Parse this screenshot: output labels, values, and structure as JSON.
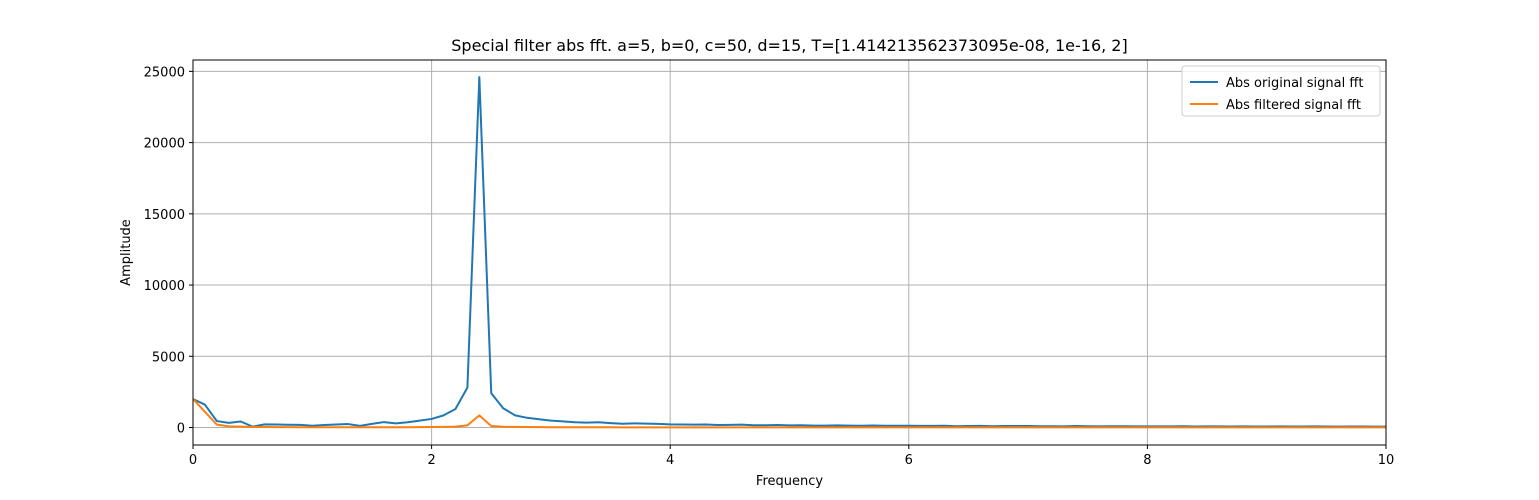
{
  "chart_data": {
    "type": "line",
    "title": "Special filter abs fft. a=5, b=0, c=50, d=15, T=[1.414213562373095e-08, 1e-16, 2]",
    "xlabel": "Frequency",
    "ylabel": "Amplitude",
    "xlim": [
      0,
      10
    ],
    "ylim": [
      -1230,
      25800
    ],
    "xticks": [
      0,
      2,
      4,
      6,
      8,
      10
    ],
    "xtick_labels": [
      "0",
      "2",
      "4",
      "6",
      "8",
      "10"
    ],
    "yticks": [
      0,
      5000,
      10000,
      15000,
      20000,
      25000
    ],
    "ytick_labels": [
      "0",
      "5000",
      "10000",
      "15000",
      "20000",
      "25000"
    ],
    "grid": true,
    "legend_position": "top-right",
    "x": [
      0.0,
      0.1,
      0.2,
      0.3,
      0.4,
      0.5,
      0.6,
      0.7,
      0.8,
      0.9,
      1.0,
      1.1,
      1.2,
      1.3,
      1.4,
      1.5,
      1.6,
      1.7,
      1.8,
      1.9,
      2.0,
      2.1,
      2.2,
      2.3,
      2.4,
      2.5,
      2.6,
      2.7,
      2.8,
      2.9,
      3.0,
      3.1,
      3.2,
      3.3,
      3.4,
      3.5,
      3.6,
      3.7,
      3.8,
      3.9,
      4.0,
      4.1,
      4.2,
      4.3,
      4.4,
      4.5,
      4.6,
      4.7,
      4.8,
      4.9,
      5.0,
      5.1,
      5.2,
      5.3,
      5.4,
      5.5,
      5.6,
      5.7,
      5.8,
      5.9,
      6.0,
      6.1,
      6.2,
      6.3,
      6.4,
      6.5,
      6.6,
      6.7,
      6.8,
      6.9,
      7.0,
      7.1,
      7.2,
      7.3,
      7.4,
      7.5,
      7.6,
      7.7,
      7.8,
      7.9,
      8.0,
      8.1,
      8.2,
      8.3,
      8.4,
      8.5,
      8.6,
      8.7,
      8.8,
      8.9,
      9.0,
      9.1,
      9.2,
      9.3,
      9.4,
      9.5,
      9.6,
      9.7,
      9.8,
      9.9,
      10.0
    ],
    "series": [
      {
        "name": "Abs original signal fft",
        "color": "#1f77b4",
        "values": [
          2000,
          1600,
          450,
          320,
          420,
          60,
          220,
          210,
          190,
          180,
          120,
          170,
          210,
          240,
          110,
          250,
          380,
          290,
          370,
          480,
          600,
          850,
          1300,
          2800,
          24600,
          2400,
          1350,
          850,
          680,
          580,
          480,
          430,
          370,
          340,
          370,
          310,
          260,
          290,
          270,
          250,
          220,
          210,
          200,
          210,
          170,
          180,
          200,
          160,
          160,
          170,
          150,
          160,
          130,
          130,
          150,
          130,
          120,
          140,
          120,
          120,
          120,
          110,
          110,
          120,
          90,
          100,
          110,
          90,
          100,
          100,
          100,
          90,
          90,
          80,
          100,
          90,
          80,
          90,
          90,
          80,
          80,
          80,
          80,
          90,
          70,
          80,
          80,
          70,
          80,
          70,
          70,
          80,
          70,
          70,
          80,
          70,
          60,
          70,
          70,
          60,
          60
        ]
      },
      {
        "name": "Abs filtered signal fft",
        "color": "#ff7f0e",
        "values": [
          2000,
          1100,
          200,
          80,
          60,
          30,
          30,
          25,
          25,
          20,
          20,
          20,
          20,
          20,
          15,
          20,
          20,
          20,
          20,
          25,
          30,
          40,
          60,
          150,
          850,
          100,
          50,
          40,
          30,
          25,
          20,
          15,
          15,
          15,
          15,
          15,
          10,
          10,
          10,
          10,
          10,
          10,
          10,
          10,
          10,
          10,
          10,
          10,
          10,
          10,
          10,
          10,
          10,
          10,
          10,
          10,
          10,
          10,
          10,
          10,
          10,
          10,
          10,
          10,
          10,
          10,
          10,
          10,
          10,
          10,
          10,
          10,
          10,
          10,
          10,
          10,
          10,
          10,
          10,
          10,
          10,
          10,
          10,
          10,
          10,
          10,
          10,
          10,
          10,
          10,
          10,
          10,
          10,
          10,
          10,
          10,
          10,
          10,
          10,
          10,
          10
        ]
      }
    ]
  }
}
